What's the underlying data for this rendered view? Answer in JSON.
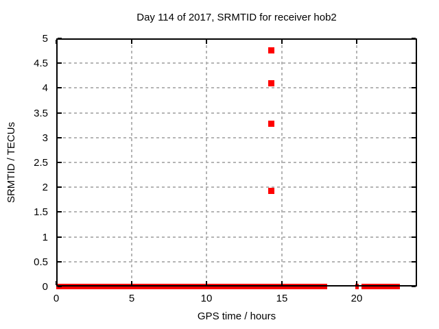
{
  "window": {
    "background_color": "#ffffff",
    "text_color": "#000000",
    "grid_color": "#b4b4b4"
  },
  "chart_data": {
    "type": "scatter",
    "title": "Day 114 of 2017, SRMTID for receiver hob2",
    "xlabel": "GPS time / hours",
    "ylabel": "SRMTID / TECUs",
    "xlim": [
      0,
      24
    ],
    "ylim": [
      0,
      5
    ],
    "xtick_values": [
      0,
      5,
      10,
      15,
      20
    ],
    "xtick_labels": [
      "0",
      "5",
      "10",
      "15",
      "20"
    ],
    "ytick_values": [
      0,
      0.5,
      1,
      1.5,
      2,
      2.5,
      3,
      3.5,
      4,
      4.5,
      5
    ],
    "ytick_labels": [
      "0",
      "0.5",
      "1",
      "1.5",
      "2",
      "2.5",
      "3",
      "3.5",
      "4",
      "4.5",
      "5"
    ],
    "grid": true,
    "legend": "none",
    "marker": "plus",
    "marker_color": "#ff0000",
    "series": [
      {
        "name": "SRMTID",
        "outlier_points": [
          {
            "x": 14.3,
            "y": 4.76
          },
          {
            "x": 14.3,
            "y": 4.1
          },
          {
            "x": 14.3,
            "y": 3.29
          },
          {
            "x": 14.3,
            "y": 1.94
          }
        ],
        "dense_zero_segments": [
          {
            "x_start": 0.0,
            "x_end": 18.0
          },
          {
            "x_start": 19.9,
            "x_end": 20.1
          },
          {
            "x_start": 20.3,
            "x_end": 22.85
          }
        ],
        "dense_segments_y": 0
      }
    ]
  }
}
